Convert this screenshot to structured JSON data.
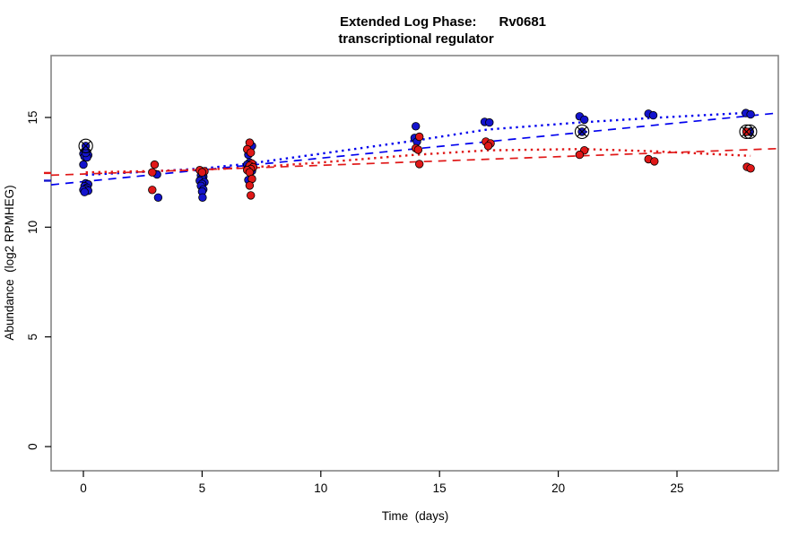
{
  "chart_data": {
    "type": "scatter",
    "title_line1": "Extended Log Phase:      Rv0681",
    "title_line2": "transcriptional regulator",
    "xlabel": "Time  (days)",
    "ylabel": "Abundance  (log2 RPMHEG)",
    "x_ticks": [
      0,
      5,
      10,
      15,
      20,
      25
    ],
    "y_ticks": [
      0,
      5,
      10,
      15
    ],
    "xlim": [
      -1.36,
      29.3
    ],
    "ylim": [
      -1.1,
      17.8
    ],
    "grid": false,
    "legend": "none",
    "box_color": "#858585",
    "axis_marks": [
      {
        "value": 12.47,
        "color": "#e01818",
        "meaning": "red regression intercept tick"
      },
      {
        "value": 12.12,
        "color": "#1414cd",
        "meaning": "blue regression intercept tick"
      }
    ],
    "series": [
      {
        "name": "series-blue",
        "color": "#1414cd",
        "points": [
          [
            0.05,
            13.45
          ],
          [
            0.15,
            13.42
          ],
          [
            0.0,
            13.35
          ],
          [
            0.1,
            13.32
          ],
          [
            0.2,
            13.28
          ],
          [
            0.05,
            13.22
          ],
          [
            0.15,
            13.18
          ],
          [
            0.1,
            13.38
          ],
          [
            0.0,
            12.85
          ],
          [
            0.1,
            12.0
          ],
          [
            0.2,
            11.95
          ],
          [
            0.05,
            11.87
          ],
          [
            0.15,
            11.8
          ],
          [
            0.1,
            11.74
          ],
          [
            0.0,
            11.7
          ],
          [
            0.2,
            11.66
          ],
          [
            0.05,
            11.6
          ],
          [
            3.1,
            12.4
          ],
          [
            3.15,
            11.35
          ],
          [
            5.0,
            12.45
          ],
          [
            4.95,
            12.35
          ],
          [
            5.05,
            12.3
          ],
          [
            5.0,
            12.22
          ],
          [
            4.9,
            12.12
          ],
          [
            5.1,
            12.05
          ],
          [
            5.0,
            11.97
          ],
          [
            4.95,
            11.88
          ],
          [
            5.05,
            11.72
          ],
          [
            5.0,
            11.62
          ],
          [
            5.02,
            11.35
          ],
          [
            7.1,
            13.7
          ],
          [
            6.95,
            13.3
          ],
          [
            7.0,
            12.95
          ],
          [
            6.9,
            12.85
          ],
          [
            7.05,
            12.75
          ],
          [
            6.95,
            12.7
          ],
          [
            7.1,
            12.57
          ],
          [
            6.95,
            12.15
          ],
          [
            14.0,
            14.6
          ],
          [
            13.95,
            14.07
          ],
          [
            14.05,
            13.9
          ],
          [
            16.9,
            14.8
          ],
          [
            17.1,
            14.77
          ],
          [
            20.9,
            15.05
          ],
          [
            21.1,
            14.9
          ],
          [
            23.8,
            15.17
          ],
          [
            24.0,
            15.1
          ],
          [
            27.9,
            15.2
          ],
          [
            28.1,
            15.14
          ]
        ],
        "circled_points": [
          [
            0.1,
            13.7
          ],
          [
            21.0,
            14.35
          ],
          [
            28.07,
            14.35
          ]
        ]
      },
      {
        "name": "series-red",
        "color": "#e01818",
        "points": [
          [
            3.0,
            12.85
          ],
          [
            2.9,
            12.5
          ],
          [
            2.9,
            11.7
          ],
          [
            4.9,
            12.6
          ],
          [
            5.1,
            12.55
          ],
          [
            5.0,
            12.5
          ],
          [
            7.0,
            13.85
          ],
          [
            6.9,
            13.55
          ],
          [
            7.05,
            13.4
          ],
          [
            7.1,
            12.9
          ],
          [
            7.0,
            12.8
          ],
          [
            7.15,
            12.73
          ],
          [
            7.05,
            12.65
          ],
          [
            6.9,
            12.6
          ],
          [
            7.0,
            12.5
          ],
          [
            7.1,
            12.2
          ],
          [
            7.0,
            11.9
          ],
          [
            7.05,
            11.45
          ],
          [
            14.15,
            14.12
          ],
          [
            14.0,
            13.6
          ],
          [
            14.1,
            13.53
          ],
          [
            14.15,
            12.88
          ],
          [
            16.95,
            13.9
          ],
          [
            17.15,
            13.82
          ],
          [
            17.05,
            13.7
          ],
          [
            21.1,
            13.5
          ],
          [
            20.9,
            13.3
          ],
          [
            23.8,
            13.1
          ],
          [
            24.05,
            13.0
          ],
          [
            27.95,
            12.75
          ],
          [
            28.1,
            12.68
          ]
        ],
        "circled_points": [
          [
            27.93,
            14.35
          ]
        ]
      }
    ],
    "trend_lines": [
      {
        "name": "blue-linear-fit",
        "color": "#0000ee",
        "style": "dashed",
        "points": [
          [
            -1.36,
            11.93
          ],
          [
            29.3,
            15.21
          ]
        ]
      },
      {
        "name": "blue-smooth-fit",
        "color": "#0000ee",
        "style": "dotted",
        "points": [
          [
            0.1,
            12.38
          ],
          [
            3,
            12.55
          ],
          [
            5,
            12.67
          ],
          [
            7,
            12.9
          ],
          [
            10,
            13.35
          ],
          [
            14,
            13.95
          ],
          [
            17,
            14.45
          ],
          [
            21,
            14.78
          ],
          [
            24,
            14.98
          ],
          [
            28.1,
            15.22
          ]
        ]
      },
      {
        "name": "red-linear-fit",
        "color": "#e01818",
        "style": "dashed",
        "points": [
          [
            -1.36,
            12.37
          ],
          [
            29.3,
            13.58
          ]
        ]
      },
      {
        "name": "red-smooth-fit",
        "color": "#e01818",
        "style": "dotted",
        "points": [
          [
            0.1,
            12.5
          ],
          [
            3,
            12.56
          ],
          [
            5,
            12.62
          ],
          [
            7,
            12.72
          ],
          [
            10,
            12.95
          ],
          [
            14,
            13.3
          ],
          [
            17,
            13.5
          ],
          [
            21,
            13.56
          ],
          [
            24,
            13.46
          ],
          [
            28.1,
            13.25
          ]
        ]
      }
    ]
  }
}
